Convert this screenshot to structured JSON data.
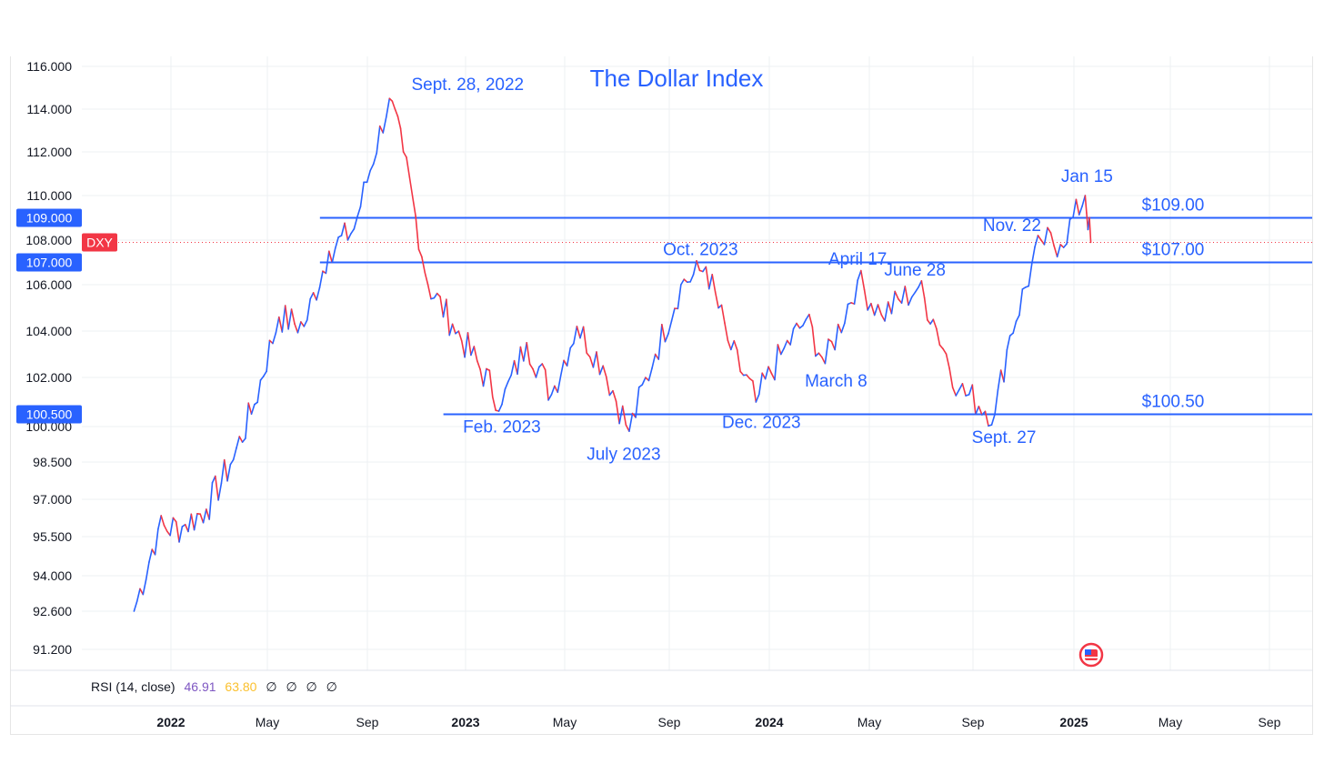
{
  "chart_data": {
    "type": "line",
    "title": "The Dollar Index",
    "symbol": "DXY",
    "ylim": [
      90.5,
      117
    ],
    "y_ticks": [
      "116.000",
      "114.000",
      "112.000",
      "110.000",
      "108.000",
      "106.000",
      "104.000",
      "102.000",
      "100.000",
      "98.500",
      "97.000",
      "95.500",
      "94.000",
      "92.600",
      "91.200"
    ],
    "x_ticks": [
      {
        "label": "2022",
        "bold": true
      },
      {
        "label": "May",
        "bold": false
      },
      {
        "label": "Sep",
        "bold": false
      },
      {
        "label": "2023",
        "bold": true
      },
      {
        "label": "May",
        "bold": false
      },
      {
        "label": "Sep",
        "bold": false
      },
      {
        "label": "2024",
        "bold": true
      },
      {
        "label": "May",
        "bold": false
      },
      {
        "label": "Sep",
        "bold": false
      },
      {
        "label": "2025",
        "bold": true
      },
      {
        "label": "May",
        "bold": false
      },
      {
        "label": "Sep",
        "bold": false
      }
    ],
    "price_series": {
      "name": "DXY",
      "x": [
        "2021-11",
        "2021-12",
        "2022-01",
        "2022-02",
        "2022-03",
        "2022-04",
        "2022-05",
        "2022-06",
        "2022-07",
        "2022-08",
        "2022-09-28",
        "2022-10",
        "2022-11",
        "2022-12",
        "2023-02",
        "2023-03",
        "2023-04",
        "2023-05",
        "2023-06",
        "2023-07",
        "2023-08",
        "2023-09",
        "2023-10",
        "2023-11",
        "2023-12",
        "2024-01",
        "2024-02",
        "2024-03-08",
        "2024-04-17",
        "2024-05",
        "2024-06-28",
        "2024-07",
        "2024-08",
        "2024-09-27",
        "2024-10",
        "2024-11-22",
        "2024-12",
        "2025-01-15",
        "2025-01-22"
      ],
      "y": [
        92.6,
        95.8,
        95.9,
        96.6,
        98.4,
        100.9,
        104.6,
        104.2,
        107.5,
        108.5,
        114.5,
        112.0,
        106.0,
        104.3,
        100.9,
        103.5,
        101.3,
        104.2,
        102.5,
        99.8,
        103.0,
        106.0,
        106.8,
        103.2,
        101.0,
        103.0,
        104.5,
        102.6,
        106.2,
        104.7,
        105.9,
        104.5,
        101.5,
        100.5,
        103.8,
        108.0,
        107.8,
        110.0,
        107.9
      ]
    },
    "levels": [
      {
        "label": "$109.00",
        "badge": "109.000",
        "value": 109.0,
        "from": "2022-07"
      },
      {
        "label": "$107.00",
        "badge": "107.000",
        "value": 107.0,
        "from": "2022-07"
      },
      {
        "label": "$100.50",
        "badge": "100.500",
        "value": 100.5,
        "from": "2022-12"
      }
    ],
    "current_price": {
      "symbol": "DXY",
      "value": 107.9
    },
    "annotations": [
      {
        "text": "Sept. 28, 2022",
        "date": "2022-09-28",
        "value": 114.8
      },
      {
        "text": "Feb. 2023",
        "date": "2023-02",
        "value": 100.8
      },
      {
        "text": "July 2023",
        "date": "2023-07",
        "value": 99.6
      },
      {
        "text": "Oct. 2023",
        "date": "2023-10",
        "value": 107.0
      },
      {
        "text": "Dec. 2023",
        "date": "2023-12",
        "value": 100.9
      },
      {
        "text": "March 8",
        "date": "2024-03-08",
        "value": 102.4
      },
      {
        "text": "April 17",
        "date": "2024-04-17",
        "value": 106.5
      },
      {
        "text": "June 28",
        "date": "2024-06-28",
        "value": 106.0
      },
      {
        "text": "Sept. 27",
        "date": "2024-09-27",
        "value": 100.3
      },
      {
        "text": "Nov. 22",
        "date": "2024-11-22",
        "value": 108.0
      },
      {
        "text": "Jan 15",
        "date": "2025-01-15",
        "value": 110.2
      }
    ],
    "colors": {
      "up": "#2962ff",
      "down": "#f23645",
      "accent": "#2962ff",
      "rsi": "#7e57c2",
      "rsi_ma": "#fbc02d"
    },
    "grid": true
  },
  "rsi": {
    "label": "RSI (14, close)",
    "value": "46.91",
    "ma_value": "63.80",
    "placeholders": [
      "∅",
      "∅",
      "∅",
      "∅"
    ]
  }
}
